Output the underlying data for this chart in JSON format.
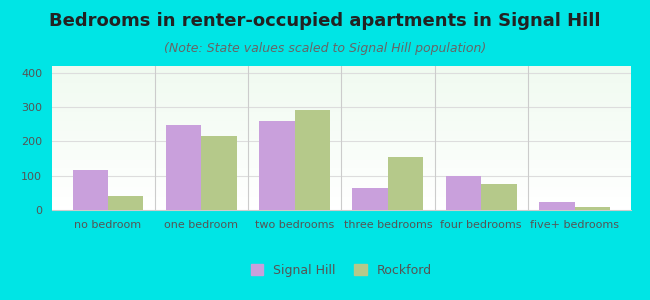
{
  "title": "Bedrooms in renter-occupied apartments in Signal Hill",
  "subtitle": "(Note: State values scaled to Signal Hill population)",
  "categories": [
    "no bedroom",
    "one bedroom",
    "two bedrooms",
    "three bedrooms",
    "four bedrooms",
    "five+ bedrooms"
  ],
  "signal_hill": [
    118,
    247,
    260,
    63,
    100,
    23
  ],
  "rockford": [
    40,
    215,
    293,
    155,
    77,
    10
  ],
  "signal_hill_color": "#c9a0dc",
  "rockford_color": "#b5c98a",
  "ylim": [
    0,
    420
  ],
  "yticks": [
    0,
    100,
    200,
    300,
    400
  ],
  "background_color": "#00e5e5",
  "plot_bg_top": "#f0f8f0",
  "plot_bg_bottom": "#ffffff",
  "legend_labels": [
    "Signal Hill",
    "Rockford"
  ],
  "bar_width": 0.38,
  "title_fontsize": 13,
  "subtitle_fontsize": 9,
  "tick_fontsize": 8,
  "legend_fontsize": 9
}
